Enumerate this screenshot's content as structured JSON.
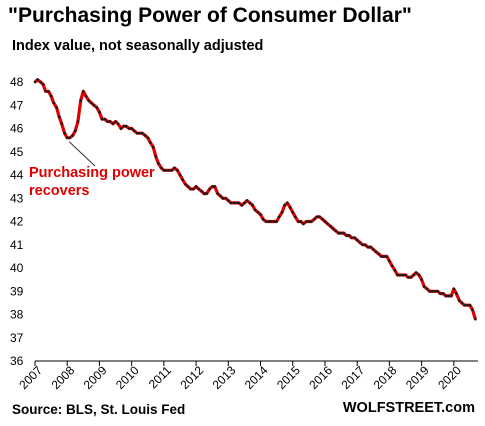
{
  "chart_data": {
    "type": "line",
    "title": "\"Purchasing Power of Consumer Dollar\"",
    "subtitle": "Index value, not seasonally adjusted",
    "ylim": [
      36,
      48
    ],
    "xlim": [
      2007,
      2020.75
    ],
    "yticks": [
      "36",
      "37",
      "38",
      "39",
      "40",
      "41",
      "42",
      "43",
      "44",
      "45",
      "46",
      "47",
      "48"
    ],
    "xticks": [
      "2007",
      "2008",
      "2009",
      "2010",
      "2011",
      "2012",
      "2013",
      "2014",
      "2015",
      "2016",
      "2017",
      "2018",
      "2019",
      "2020"
    ],
    "grid": false,
    "colors": {
      "line": "#e00000",
      "markers": "#1a1a1a",
      "annotation": "#e00000"
    },
    "series": [
      {
        "x": [
          2007.0,
          2007.08,
          2007.17,
          2007.25,
          2007.33,
          2007.42,
          2007.5,
          2007.58,
          2007.67,
          2007.75,
          2007.83,
          2007.92,
          2008.0,
          2008.08,
          2008.17,
          2008.25,
          2008.33,
          2008.42,
          2008.5,
          2008.58,
          2008.67,
          2008.75,
          2008.83,
          2008.92,
          2009.0,
          2009.08,
          2009.17,
          2009.25,
          2009.33,
          2009.42,
          2009.5,
          2009.58,
          2009.67,
          2009.75,
          2009.83,
          2009.92,
          2010.0,
          2010.08,
          2010.17,
          2010.25,
          2010.33,
          2010.42,
          2010.5,
          2010.58,
          2010.67,
          2010.75,
          2010.83,
          2010.92,
          2011.0,
          2011.08,
          2011.17,
          2011.25,
          2011.33,
          2011.42,
          2011.5,
          2011.58,
          2011.67,
          2011.75,
          2011.83,
          2011.92,
          2012.0,
          2012.08,
          2012.17,
          2012.25,
          2012.33,
          2012.42,
          2012.5,
          2012.58,
          2012.67,
          2012.75,
          2012.83,
          2012.92,
          2013.0,
          2013.08,
          2013.17,
          2013.25,
          2013.33,
          2013.42,
          2013.5,
          2013.58,
          2013.67,
          2013.75,
          2013.83,
          2013.92,
          2014.0,
          2014.08,
          2014.17,
          2014.25,
          2014.33,
          2014.42,
          2014.5,
          2014.58,
          2014.67,
          2014.75,
          2014.83,
          2014.92,
          2015.0,
          2015.08,
          2015.17,
          2015.25,
          2015.33,
          2015.42,
          2015.5,
          2015.58,
          2015.67,
          2015.75,
          2015.83,
          2015.92,
          2016.0,
          2016.08,
          2016.17,
          2016.25,
          2016.33,
          2016.42,
          2016.5,
          2016.58,
          2016.67,
          2016.75,
          2016.83,
          2016.92,
          2017.0,
          2017.08,
          2017.17,
          2017.25,
          2017.33,
          2017.42,
          2017.5,
          2017.58,
          2017.67,
          2017.75,
          2017.83,
          2017.92,
          2018.0,
          2018.08,
          2018.17,
          2018.25,
          2018.33,
          2018.42,
          2018.5,
          2018.58,
          2018.67,
          2018.75,
          2018.83,
          2018.92,
          2019.0,
          2019.08,
          2019.17,
          2019.25,
          2019.33,
          2019.42,
          2019.5,
          2019.58,
          2019.67,
          2019.75,
          2019.83,
          2019.92,
          2020.0,
          2020.08,
          2020.17,
          2020.25,
          2020.33,
          2020.42,
          2020.5,
          2020.58,
          2020.67
        ],
        "values": [
          48.0,
          48.1,
          48.0,
          47.9,
          47.6,
          47.6,
          47.4,
          47.1,
          46.9,
          46.5,
          46.2,
          45.8,
          45.6,
          45.6,
          45.7,
          45.9,
          46.3,
          47.2,
          47.6,
          47.4,
          47.2,
          47.1,
          47.0,
          46.9,
          46.7,
          46.4,
          46.4,
          46.3,
          46.3,
          46.2,
          46.3,
          46.2,
          46.0,
          46.1,
          46.1,
          46.0,
          46.0,
          45.9,
          45.8,
          45.8,
          45.8,
          45.7,
          45.6,
          45.4,
          45.2,
          44.8,
          44.5,
          44.3,
          44.2,
          44.2,
          44.2,
          44.2,
          44.3,
          44.2,
          44.0,
          43.8,
          43.6,
          43.5,
          43.4,
          43.4,
          43.5,
          43.4,
          43.3,
          43.2,
          43.2,
          43.4,
          43.5,
          43.5,
          43.2,
          43.1,
          43.0,
          43.0,
          42.9,
          42.8,
          42.8,
          42.8,
          42.8,
          42.7,
          42.8,
          42.9,
          42.8,
          42.7,
          42.5,
          42.4,
          42.3,
          42.1,
          42.0,
          42.0,
          42.0,
          42.0,
          42.0,
          42.2,
          42.4,
          42.7,
          42.8,
          42.6,
          42.4,
          42.2,
          42.0,
          42.0,
          41.9,
          42.0,
          42.0,
          42.0,
          42.1,
          42.2,
          42.2,
          42.1,
          42.0,
          41.9,
          41.8,
          41.7,
          41.6,
          41.5,
          41.5,
          41.5,
          41.4,
          41.4,
          41.3,
          41.3,
          41.2,
          41.1,
          41.0,
          41.0,
          40.9,
          40.9,
          40.8,
          40.7,
          40.6,
          40.5,
          40.5,
          40.5,
          40.3,
          40.1,
          39.9,
          39.7,
          39.7,
          39.7,
          39.7,
          39.6,
          39.6,
          39.7,
          39.8,
          39.7,
          39.5,
          39.2,
          39.1,
          39.0,
          39.0,
          39.0,
          39.0,
          38.9,
          38.9,
          38.8,
          38.8,
          38.8,
          39.1,
          38.9,
          38.6,
          38.5,
          38.4,
          38.4,
          38.4,
          38.2,
          37.8
        ]
      }
    ],
    "annotation": {
      "lines": [
        "Purchasing power",
        "recovers"
      ],
      "x": 2008.0,
      "y": 45.6
    }
  },
  "source": "Source: BLS, St. Louis Fed",
  "brand": "WOLFSTREET.com"
}
